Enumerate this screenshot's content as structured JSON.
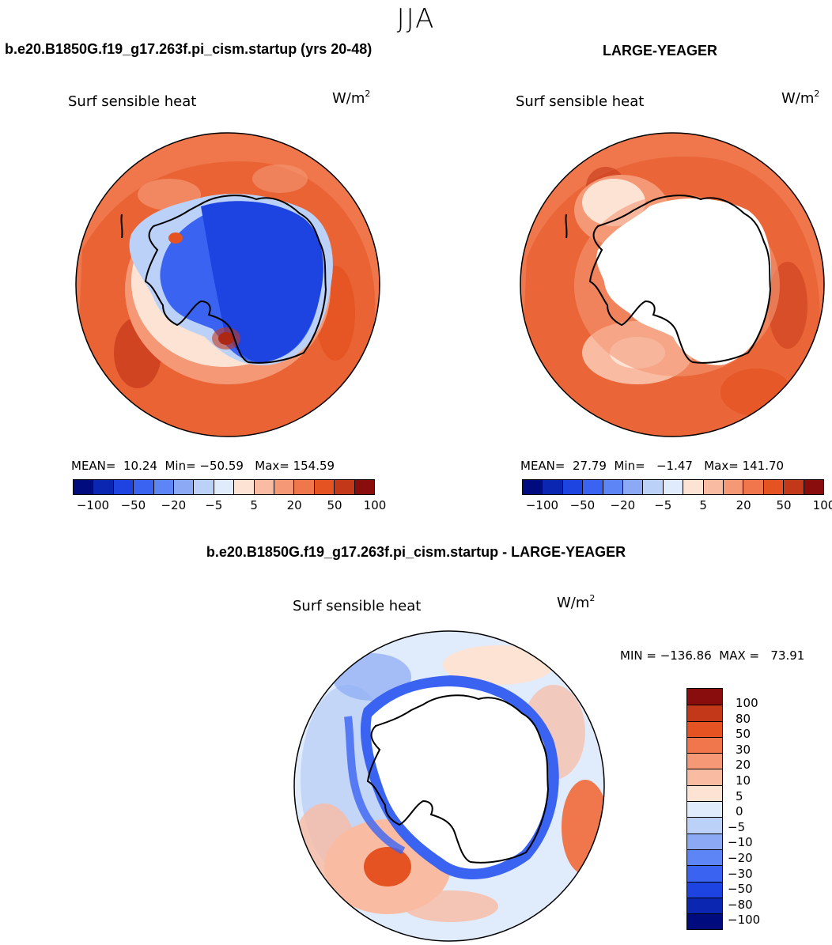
{
  "season": "JJA",
  "panels": {
    "left": {
      "title": "b.e20.B1850G.f19_g17.263f.pi_cism.startup (yrs 20-48)",
      "variable": "Surf sensible heat",
      "units_base": "W/m",
      "units_exp": "2",
      "stats": "MEAN=  10.24  Min= −50.59   Max= 154.59"
    },
    "right": {
      "title": "LARGE-YEAGER",
      "variable": "Surf sensible heat",
      "units_base": "W/m",
      "units_exp": "2",
      "stats": "MEAN=  27.79  Min=   −1.47   Max= 141.70"
    },
    "diff": {
      "title": "b.e20.B1850G.f19_g17.263f.pi_cism.startup - LARGE-YEAGER",
      "variable": "Surf sensible heat",
      "units_base": "W/m",
      "units_exp": "2",
      "stats": "MIN = −136.86  MAX =   73.91"
    }
  },
  "colorbar_abs": {
    "colors": [
      "#000c7e",
      "#0b27b2",
      "#1d43e0",
      "#3b63f2",
      "#5d85f5",
      "#8ca9f5",
      "#bcd1f8",
      "#e0ebfb",
      "#fde3d4",
      "#f9bca3",
      "#f49875",
      "#f0774c",
      "#e45321",
      "#c4381a",
      "#8a0d0d"
    ],
    "labels": [
      "−100",
      "−50",
      "−20",
      "−5",
      "5",
      "20",
      "50",
      "100"
    ]
  },
  "colorbar_diff": {
    "colors": [
      "#000c7e",
      "#0b27b2",
      "#1d43e0",
      "#3b63f2",
      "#5d85f5",
      "#8ca9f5",
      "#bcd1f8",
      "#e0ebfb",
      "#fde3d4",
      "#f9bca3",
      "#f49875",
      "#f0774c",
      "#e45321",
      "#c4381a",
      "#8a0d0d"
    ],
    "labels": [
      "100",
      "80",
      "50",
      "30",
      "20",
      "10",
      "5",
      "0",
      "−5",
      "−10",
      "−20",
      "−30",
      "−50",
      "−80",
      "−100"
    ]
  }
}
